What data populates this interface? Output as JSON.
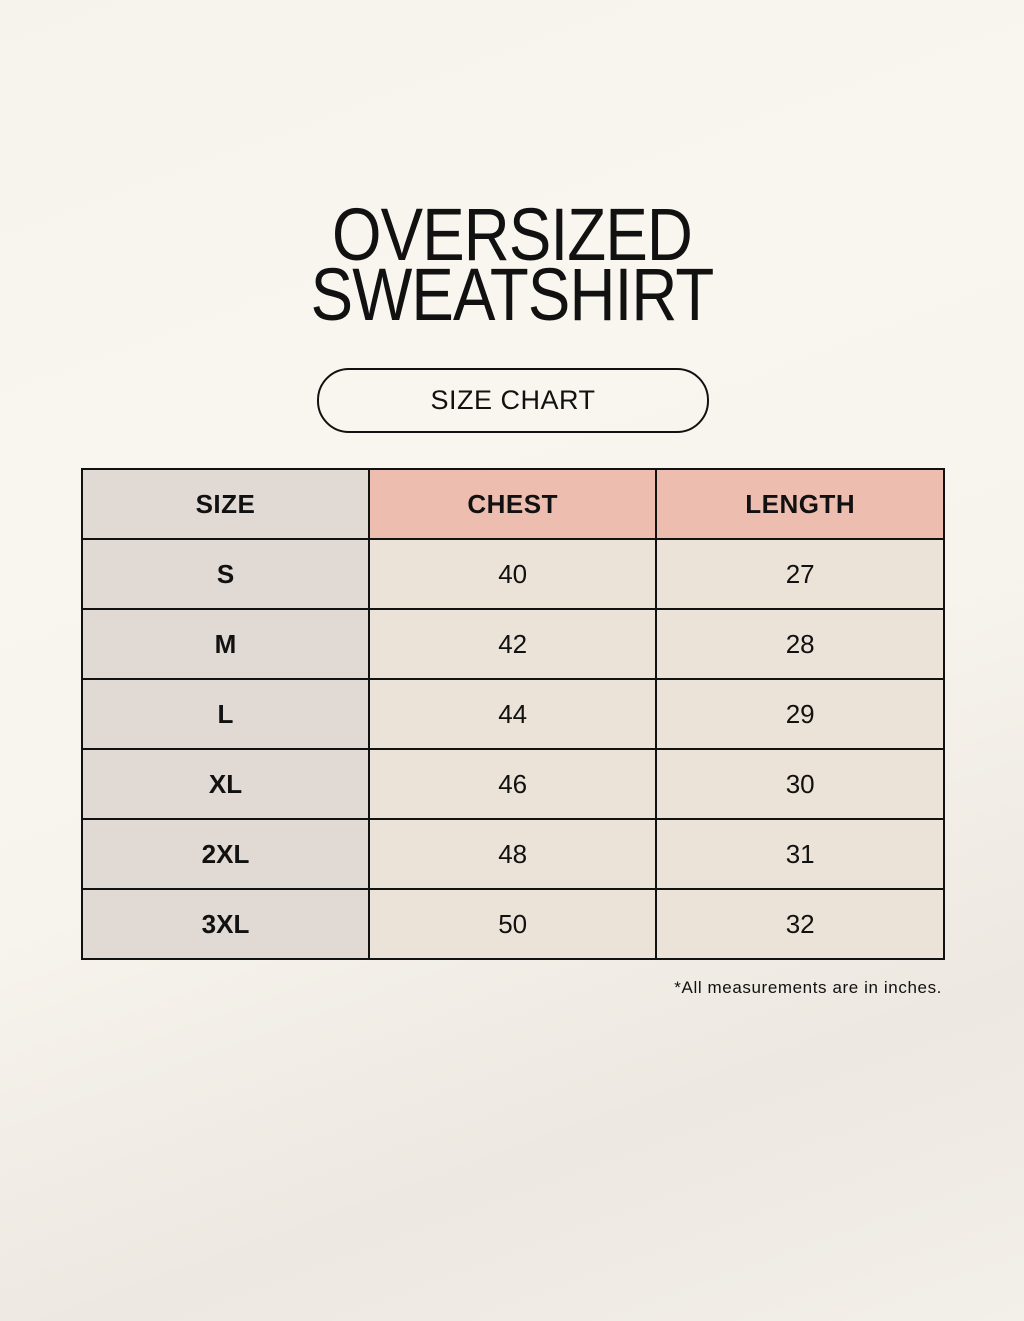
{
  "title": {
    "line1": "OVERSIZED",
    "line2": "SWEATSHIRT"
  },
  "subtitle": "SIZE CHART",
  "table": {
    "headers": [
      "SIZE",
      "CHEST",
      "LENGTH"
    ],
    "rows": [
      [
        "S",
        "40",
        "27"
      ],
      [
        "M",
        "42",
        "28"
      ],
      [
        "L",
        "44",
        "29"
      ],
      [
        "XL",
        "46",
        "30"
      ],
      [
        "2XL",
        "48",
        "31"
      ],
      [
        "3XL",
        "50",
        "32"
      ]
    ]
  },
  "footnote": "*All measurements are in inches.",
  "colors": {
    "size_column": "#e0d9d4",
    "header_accent": "#edbdaf",
    "cells": "#ebe3d8"
  }
}
